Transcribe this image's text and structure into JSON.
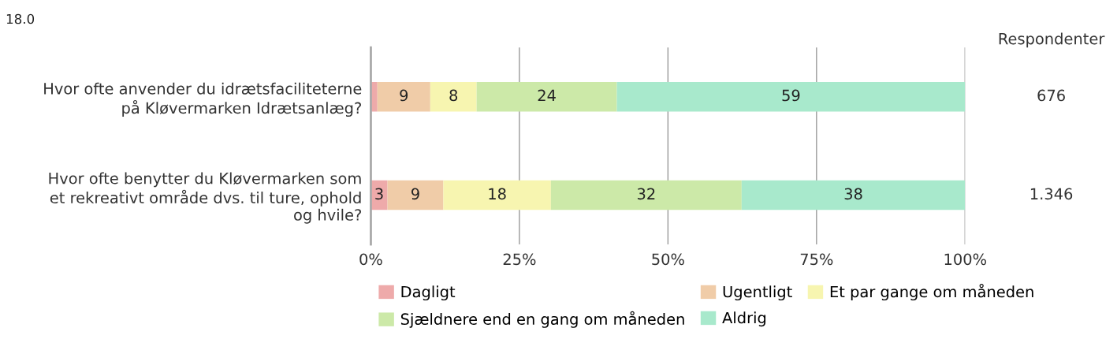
{
  "chart_data": {
    "type": "bar",
    "orientation": "horizontal",
    "stacked": true,
    "categories": [
      "Hvor ofte anvender du idrætsfaciliteterne\npå Kløvermarken Idrætsanlæg?",
      "Hvor ofte benytter du Kløvermarken som\net rekreativt område dvs. til ture, ophold\nog hvile?"
    ],
    "series": [
      {
        "name": "Dagligt",
        "color": "#eeaaaa",
        "values": [
          1.1,
          2.8
        ],
        "value_labels": [
          null,
          "3"
        ]
      },
      {
        "name": "Ugentligt",
        "color": "#f0cca8",
        "values": [
          8.9,
          9.4
        ],
        "value_labels": [
          "9",
          "9"
        ]
      },
      {
        "name": "Et par gange om måneden",
        "color": "#f7f5b0",
        "values": [
          7.8,
          18.1
        ],
        "value_labels": [
          "8",
          "18"
        ]
      },
      {
        "name": "Sjældnere end en gang om måneden",
        "color": "#cce9a8",
        "values": [
          23.6,
          32.1
        ],
        "value_labels": [
          "24",
          "32"
        ]
      },
      {
        "name": "Aldrig",
        "color": "#a8e9cc",
        "values": [
          58.6,
          37.6
        ],
        "value_labels": [
          "59",
          "38"
        ]
      }
    ],
    "xlim": [
      0,
      100
    ],
    "xticks": [
      {
        "value": 0,
        "label": "0%"
      },
      {
        "value": 25,
        "label": "25%"
      },
      {
        "value": 50,
        "label": "50%"
      },
      {
        "value": 75,
        "label": "75%"
      },
      {
        "value": 100,
        "label": "100%"
      }
    ],
    "grid": "x",
    "legend": "bottom",
    "annotations": [
      "18.0",
      "Respondenter",
      "676",
      "1.346"
    ]
  }
}
